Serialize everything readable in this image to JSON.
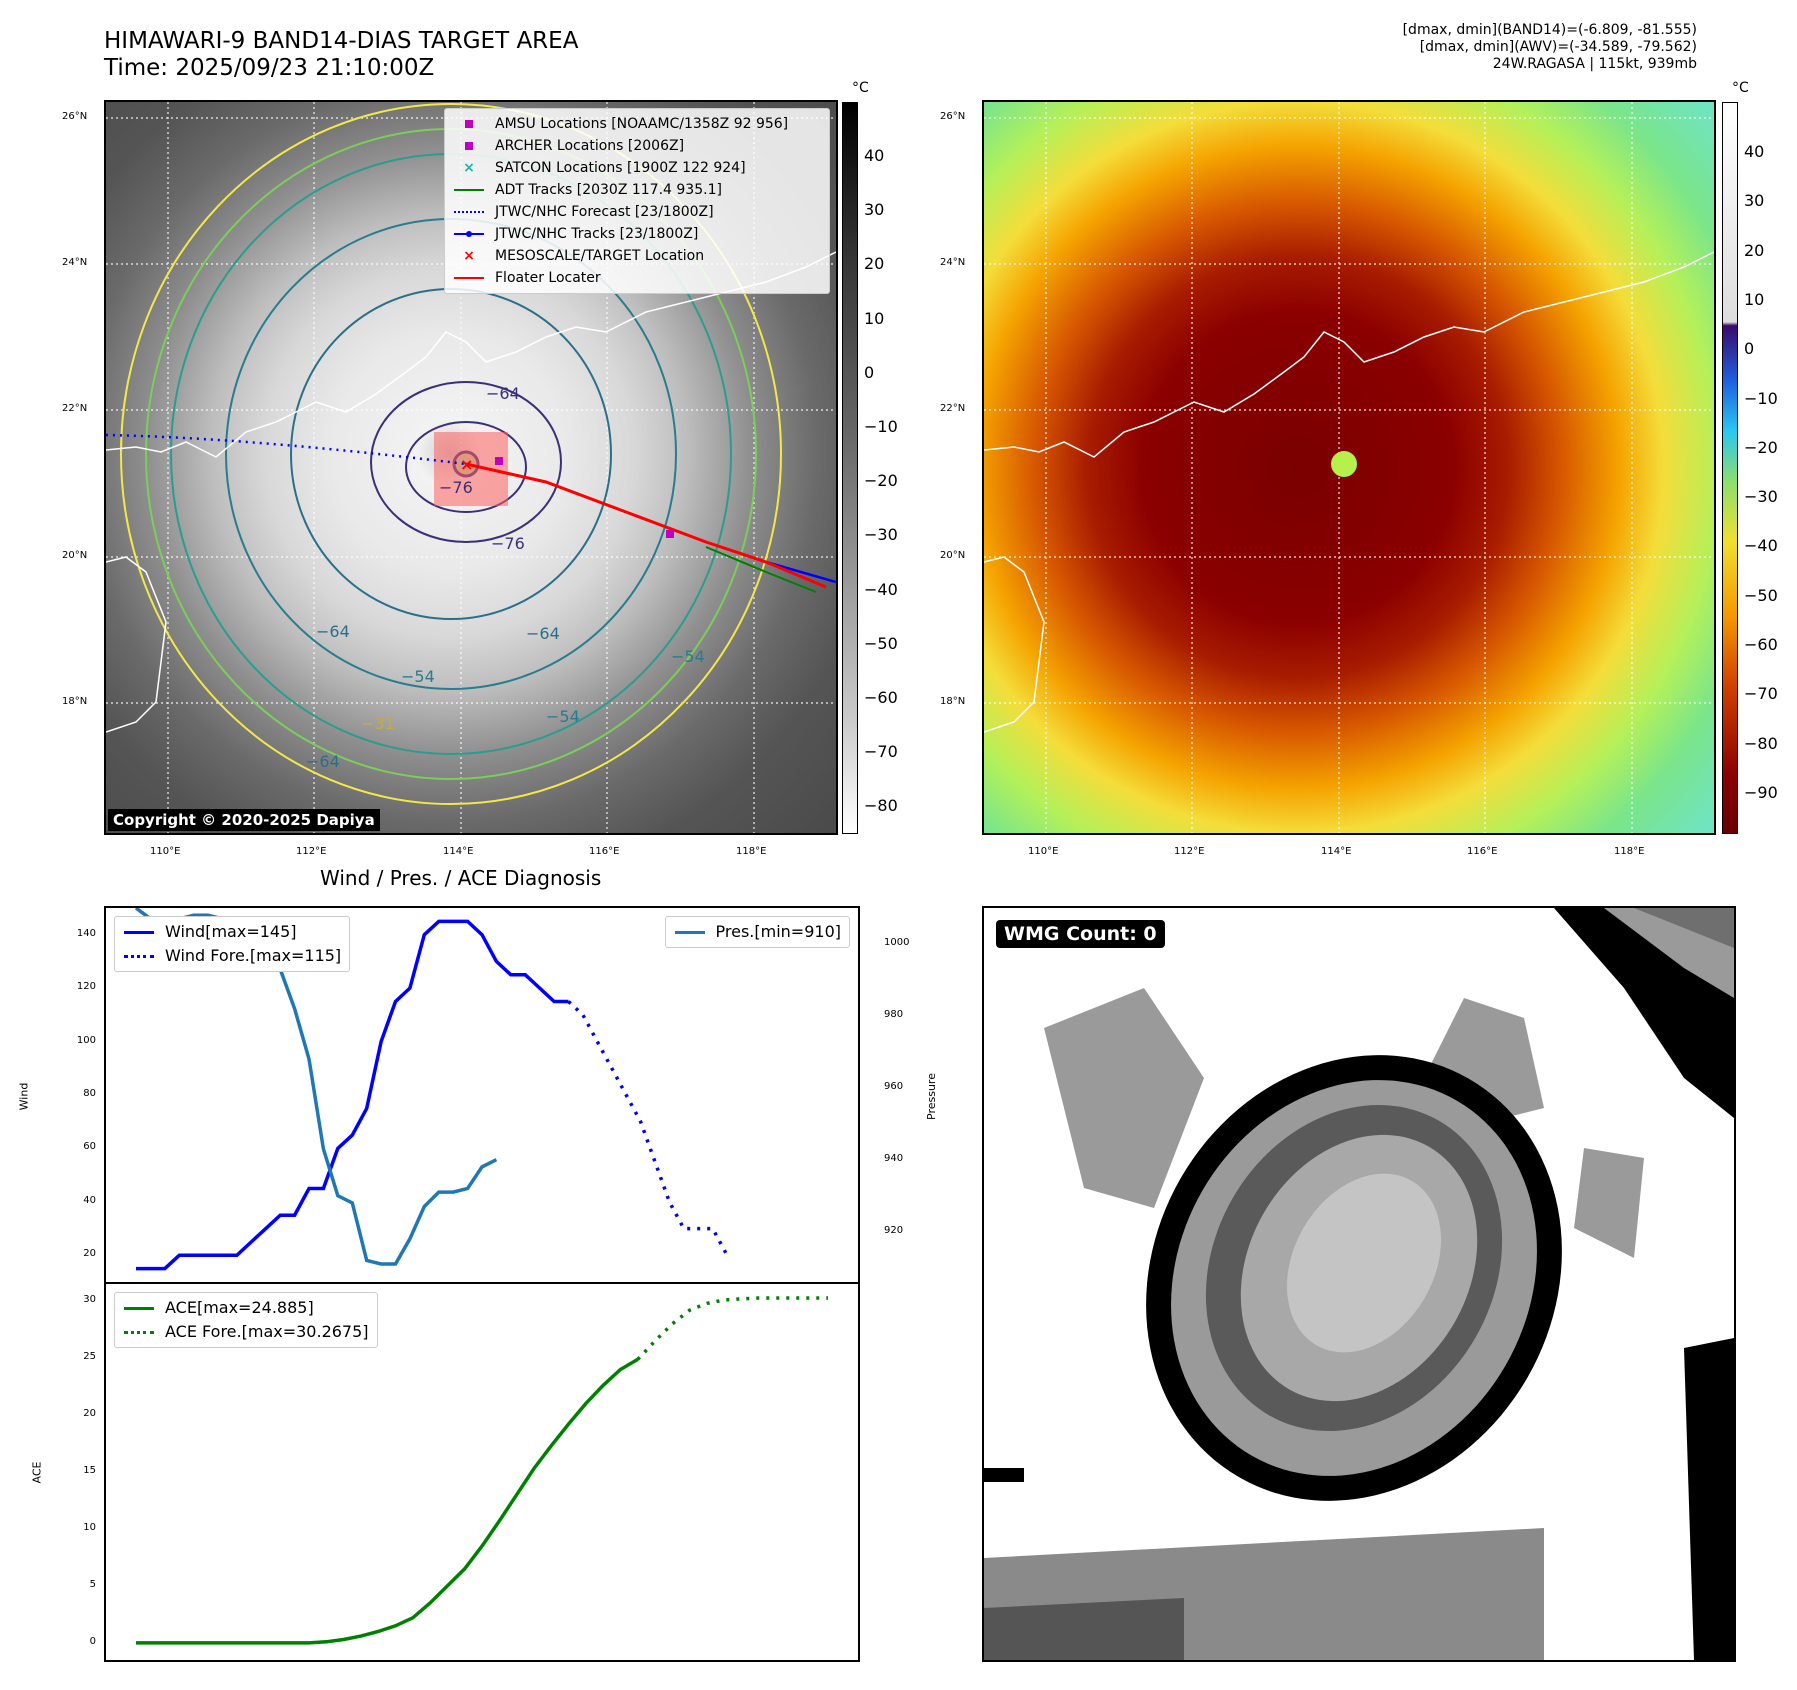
{
  "header": {
    "title_line1": "HIMAWARI-9 BAND14-DIAS TARGET AREA",
    "title_line2": "Time: 2025/09/23 21:10:00Z",
    "info_line1": "[dmax, dmin](BAND14)=(-6.809, -81.555)",
    "info_line2": "[dmax, dmin](AWV)=(-34.589, -79.562)",
    "info_line3": "24W.RAGASA | 115kt, 939mb"
  },
  "map": {
    "lat_labels": [
      "26°N",
      "24°N",
      "22°N",
      "20°N",
      "18°N"
    ],
    "lon_labels": [
      "110°E",
      "112°E",
      "114°E",
      "116°E",
      "118°E"
    ],
    "copyright": "Copyright © 2020-2025 Dapiya",
    "contour_labels": [
      "−64",
      "−76",
      "−76",
      "−64",
      "−64",
      "−54",
      "−31",
      "−54",
      "−54",
      "−64"
    ],
    "legend": [
      {
        "label": "AMSU Locations [NOAAMC/1358Z 92 956]",
        "color": "#c000c0",
        "marker": "square"
      },
      {
        "label": "ARCHER Locations [2006Z]",
        "color": "#c000c0",
        "marker": "square"
      },
      {
        "label": "SATCON Locations [1900Z 122 924]",
        "color": "#20b2aa",
        "marker": "x"
      },
      {
        "label": "ADT Tracks [2030Z 117.4 935.1]",
        "color": "#008000",
        "marker": "line"
      },
      {
        "label": "JTWC/NHC Forecast [23/1800Z]",
        "color": "#0000ff",
        "marker": "dotted"
      },
      {
        "label": "JTWC/NHC Tracks [23/1800Z]",
        "color": "#0000ff",
        "marker": "line-dot"
      },
      {
        "label": "MESOSCALE/TARGET Location",
        "color": "#ff0000",
        "marker": "x"
      },
      {
        "label": "Floater Locater",
        "color": "#ff0000",
        "marker": "line"
      }
    ]
  },
  "colorbar_left": {
    "unit": "°C",
    "ticks": [
      "40",
      "30",
      "20",
      "10",
      "0",
      "−10",
      "−20",
      "−30",
      "−40",
      "−50",
      "−60",
      "−70",
      "−80"
    ]
  },
  "colorbar_right": {
    "unit": "°C",
    "ticks": [
      "40",
      "30",
      "20",
      "10",
      "0",
      "−10",
      "−20",
      "−30",
      "−40",
      "−50",
      "−60",
      "−70",
      "−80",
      "−90"
    ]
  },
  "wmg": {
    "label": "WMG Count: 0"
  },
  "chart_data": [
    {
      "type": "line",
      "title": "Wind / Pres. / ACE Diagnosis",
      "ylabel": "Wind",
      "ylabel_right": "Pressure",
      "ylim": [
        10,
        150
      ],
      "ylim_right": [
        906,
        1010
      ],
      "yticks": [
        20,
        40,
        60,
        80,
        100,
        120,
        140
      ],
      "yticks_right": [
        920,
        940,
        960,
        980,
        1000
      ],
      "x": [
        0,
        1,
        2,
        3,
        4,
        5,
        6,
        7,
        8,
        9,
        10,
        11,
        12,
        13,
        14,
        15,
        16,
        17,
        18,
        19,
        20,
        21,
        22,
        23,
        24,
        25,
        26,
        27,
        28,
        29,
        30,
        31,
        32,
        33,
        34,
        35,
        36,
        37,
        38,
        39,
        40,
        41,
        42,
        43,
        44,
        45,
        46,
        47,
        48
      ],
      "series": [
        {
          "name": "Wind[max=145]",
          "axis": "left",
          "color": "#0000ff",
          "style": "solid",
          "values": [
            15,
            15,
            15,
            20,
            20,
            20,
            20,
            20,
            25,
            30,
            35,
            35,
            45,
            45,
            60,
            65,
            75,
            100,
            115,
            120,
            140,
            145,
            145,
            145,
            140,
            130,
            125,
            125,
            120,
            115,
            115,
            null,
            null,
            null,
            null,
            null,
            null,
            null,
            null,
            null,
            null,
            null,
            null,
            null,
            null,
            null,
            null,
            null,
            null
          ]
        },
        {
          "name": "Wind Fore.[max=115]",
          "axis": "left",
          "color": "#0000ff",
          "style": "dotted",
          "values": [
            null,
            null,
            null,
            null,
            null,
            null,
            null,
            null,
            null,
            null,
            null,
            null,
            null,
            null,
            null,
            null,
            null,
            null,
            null,
            null,
            null,
            null,
            null,
            null,
            null,
            null,
            null,
            null,
            null,
            null,
            115,
            110,
            100,
            90,
            80,
            70,
            55,
            40,
            30,
            30,
            30,
            20,
            null,
            null,
            null,
            null,
            null,
            null,
            null
          ]
        },
        {
          "name": "Pres.[min=910]",
          "axis": "right",
          "color": "#1f77b4",
          "style": "solid",
          "values": [
            1010,
            1007,
            1007,
            1007,
            1008,
            1008,
            1007,
            1006,
            1001,
            997,
            993,
            982,
            968,
            943,
            930,
            928,
            912,
            911,
            911,
            918,
            927,
            931,
            931,
            932,
            938,
            940,
            null,
            null,
            null,
            null,
            null,
            null,
            null,
            null,
            null,
            null,
            null,
            null,
            null,
            null,
            null,
            null,
            null,
            null,
            null,
            null,
            null,
            null,
            null
          ]
        }
      ]
    },
    {
      "type": "line",
      "ylabel": "ACE",
      "ylim": [
        -1.5,
        31.5
      ],
      "yticks": [
        0,
        5,
        10,
        15,
        20,
        25,
        30
      ],
      "x": [
        0,
        1,
        2,
        3,
        4,
        5,
        6,
        7,
        8,
        9,
        10,
        11,
        12,
        13,
        14,
        15,
        16,
        17,
        18,
        19,
        20,
        21,
        22,
        23,
        24,
        25,
        26,
        27,
        28,
        29,
        30,
        31,
        32,
        33,
        34,
        35,
        36,
        37,
        38,
        39,
        40
      ],
      "series": [
        {
          "name": "ACE[max=24.885]",
          "color": "#008000",
          "style": "solid",
          "values": [
            0,
            0,
            0,
            0,
            0,
            0,
            0,
            0,
            0,
            0,
            0,
            0.1,
            0.3,
            0.6,
            1.0,
            1.5,
            2.2,
            3.5,
            5,
            6.5,
            8.5,
            10.7,
            13,
            15.3,
            17.3,
            19.2,
            21,
            22.6,
            24,
            24.885,
            null,
            null,
            null,
            null,
            null,
            null,
            null,
            null,
            null,
            null,
            null
          ]
        },
        {
          "name": "ACE Fore.[max=30.2675]",
          "color": "#008000",
          "style": "dotted",
          "values": [
            null,
            null,
            null,
            null,
            null,
            null,
            null,
            null,
            null,
            null,
            null,
            null,
            null,
            null,
            null,
            null,
            null,
            null,
            null,
            null,
            null,
            null,
            null,
            null,
            null,
            null,
            null,
            null,
            null,
            24.885,
            26.5,
            28,
            29.2,
            29.8,
            30.1,
            30.2,
            30.2675,
            30.2675,
            30.2675,
            30.2675,
            30.2675
          ]
        }
      ]
    }
  ]
}
